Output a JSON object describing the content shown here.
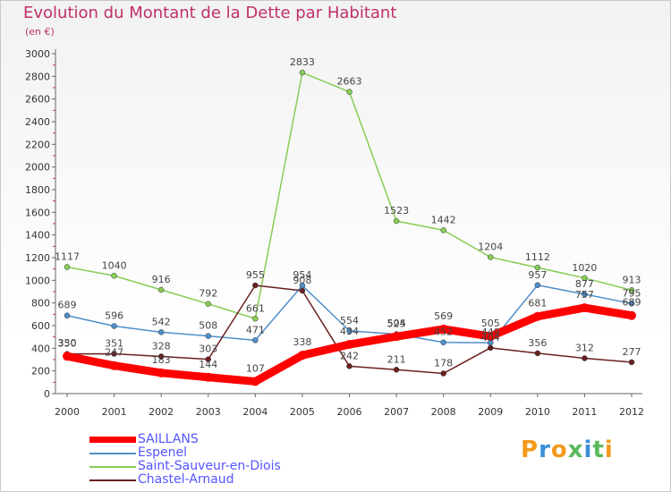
{
  "header": {
    "title": "Evolution du Montant de la Dette par Habitant",
    "unit": "(en €)"
  },
  "logo": {
    "text": "Proxiti"
  },
  "colors": {
    "SAILLANS": "#ff0000",
    "Espenel": "#4f8fc9",
    "Saint-Sauveur-en-Diois": "#88cc55",
    "Chastel-Arnaud": "#6a1f1f",
    "axis": "#666666",
    "grid": "#dddddd"
  },
  "chart_data": {
    "type": "line",
    "x": [
      "2000",
      "2001",
      "2002",
      "2003",
      "2004",
      "2005",
      "2006",
      "2007",
      "2008",
      "2009",
      "2010",
      "2011",
      "2012"
    ],
    "ylim": [
      0,
      3000
    ],
    "yticks": [
      0,
      200,
      400,
      600,
      800,
      1000,
      1200,
      1400,
      1600,
      1800,
      2000,
      2200,
      2400,
      2600,
      2800,
      3000
    ],
    "grid": false,
    "legend": "bottom-left",
    "series": [
      {
        "name": "SAILLANS",
        "values": [
          330,
          247,
          183,
          144,
          107,
          338,
          434,
          504,
          569,
          505,
          681,
          757,
          689
        ]
      },
      {
        "name": "Espenel",
        "values": [
          689,
          596,
          542,
          508,
          471,
          954,
          554,
          525,
          452,
          449,
          957,
          877,
          795
        ]
      },
      {
        "name": "Saint-Sauveur-en-Diois",
        "values": [
          1117,
          1040,
          916,
          792,
          661,
          2833,
          2663,
          1523,
          1442,
          1204,
          1112,
          1020,
          913
        ]
      },
      {
        "name": "Chastel-Arnaud",
        "values": [
          350,
          351,
          328,
          303,
          955,
          908,
          242,
          211,
          178,
          404,
          356,
          312,
          277
        ]
      }
    ]
  }
}
